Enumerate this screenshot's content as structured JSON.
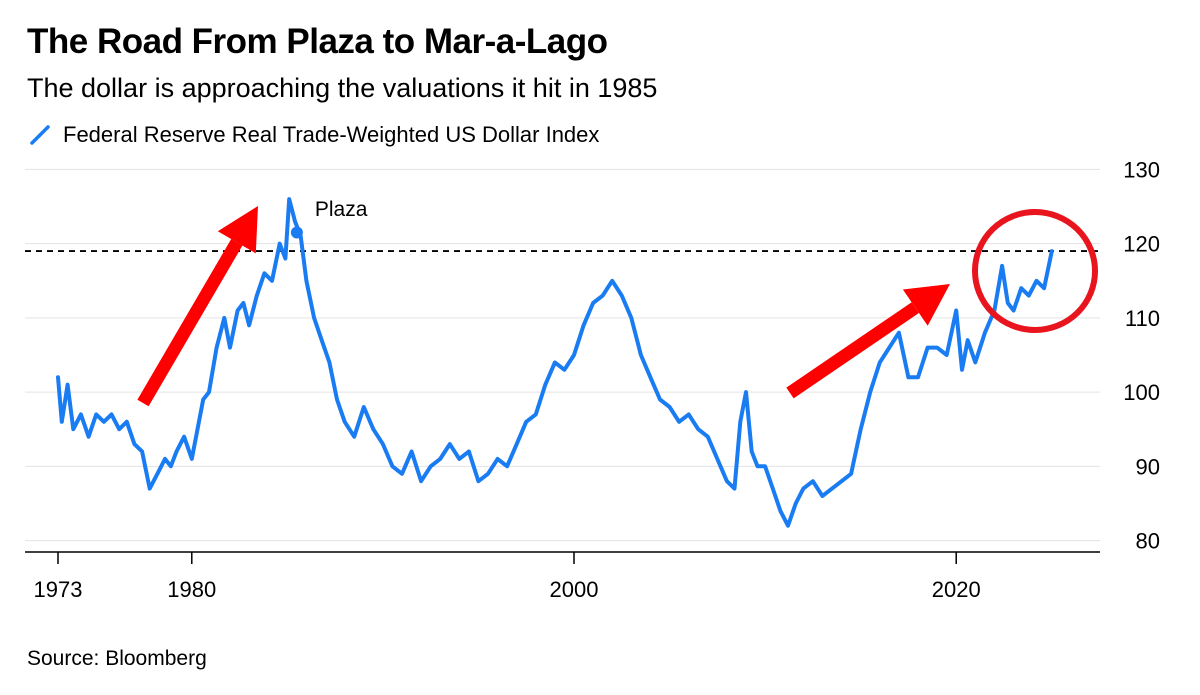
{
  "title": "The Road From Plaza to Mar-a-Lago",
  "subtitle": "The dollar is approaching the valuations it hit in 1985",
  "source": "Source: Bloomberg",
  "colors": {
    "line": "#1a7cf2",
    "arrow": "#ff0000",
    "circle": "#e8141e",
    "grid": "#e3e3e3",
    "axis": "#000000"
  },
  "chart_data": {
    "type": "line",
    "title": "The Road From Plaza to Mar-a-Lago",
    "subtitle": "The dollar is approaching the valuations it hit in 1985",
    "xlabel": "",
    "ylabel": "",
    "xlim": [
      1973,
      2027
    ],
    "ylim": [
      79,
      131
    ],
    "x_ticks": [
      1973,
      1980,
      2000,
      2020
    ],
    "y_ticks": [
      80,
      90,
      100,
      110,
      120,
      130
    ],
    "y_axis_position": "right",
    "grid": true,
    "legend_position": "top-left",
    "series": [
      {
        "name": "Federal Reserve Real Trade-Weighted US Dollar Index",
        "x": [
          1973.0,
          1973.2,
          1973.5,
          1973.8,
          1974.2,
          1974.6,
          1975.0,
          1975.4,
          1975.8,
          1976.2,
          1976.6,
          1977.0,
          1977.4,
          1977.8,
          1978.2,
          1978.6,
          1978.9,
          1979.2,
          1979.6,
          1980.0,
          1980.3,
          1980.6,
          1980.9,
          1981.3,
          1981.7,
          1982.0,
          1982.4,
          1982.7,
          1983.0,
          1983.4,
          1983.8,
          1984.2,
          1984.6,
          1984.9,
          1985.1,
          1985.4,
          1985.7,
          1986.0,
          1986.4,
          1986.8,
          1987.2,
          1987.6,
          1988.0,
          1988.5,
          1989.0,
          1989.5,
          1990.0,
          1990.5,
          1991.0,
          1991.5,
          1992.0,
          1992.5,
          1993.0,
          1993.5,
          1994.0,
          1994.5,
          1995.0,
          1995.5,
          1996.0,
          1996.5,
          1997.0,
          1997.5,
          1998.0,
          1998.5,
          1999.0,
          1999.5,
          2000.0,
          2000.5,
          2001.0,
          2001.5,
          2002.0,
          2002.5,
          2003.0,
          2003.5,
          2004.0,
          2004.5,
          2005.0,
          2005.5,
          2006.0,
          2006.5,
          2007.0,
          2007.5,
          2008.0,
          2008.4,
          2008.7,
          2009.0,
          2009.3,
          2009.6,
          2010.0,
          2010.4,
          2010.8,
          2011.2,
          2011.6,
          2012.0,
          2012.5,
          2013.0,
          2013.5,
          2014.0,
          2014.5,
          2015.0,
          2015.5,
          2016.0,
          2016.5,
          2017.0,
          2017.5,
          2018.0,
          2018.5,
          2019.0,
          2019.5,
          2020.0,
          2020.3,
          2020.6,
          2021.0,
          2021.5,
          2022.0,
          2022.4,
          2022.7,
          2023.0,
          2023.4,
          2023.8,
          2024.2,
          2024.6,
          2025.0
        ],
        "y": [
          102,
          96,
          101,
          95,
          97,
          94,
          97,
          96,
          97,
          95,
          96,
          93,
          92,
          87,
          89,
          91,
          90,
          92,
          94,
          91,
          95,
          99,
          100,
          106,
          110,
          106,
          111,
          112,
          109,
          113,
          116,
          115,
          120,
          118,
          126,
          123,
          121,
          115,
          110,
          107,
          104,
          99,
          96,
          94,
          98,
          95,
          93,
          90,
          89,
          92,
          88,
          90,
          91,
          93,
          91,
          92,
          88,
          89,
          91,
          90,
          93,
          96,
          97,
          101,
          104,
          103,
          105,
          109,
          112,
          113,
          115,
          113,
          110,
          105,
          102,
          99,
          98,
          96,
          97,
          95,
          94,
          91,
          88,
          87,
          96,
          100,
          92,
          90,
          90,
          87,
          84,
          82,
          85,
          87,
          88,
          86,
          87,
          88,
          89,
          95,
          100,
          104,
          106,
          108,
          102,
          102,
          106,
          106,
          105,
          111,
          103,
          107,
          104,
          108,
          111,
          117,
          112,
          111,
          114,
          113,
          115,
          114,
          119
        ]
      }
    ],
    "annotations": [
      {
        "text": "Plaza",
        "x": 1985.5,
        "y": 121.5
      }
    ],
    "reference_lines": [
      {
        "style": "dashed",
        "y": 119
      }
    ]
  }
}
